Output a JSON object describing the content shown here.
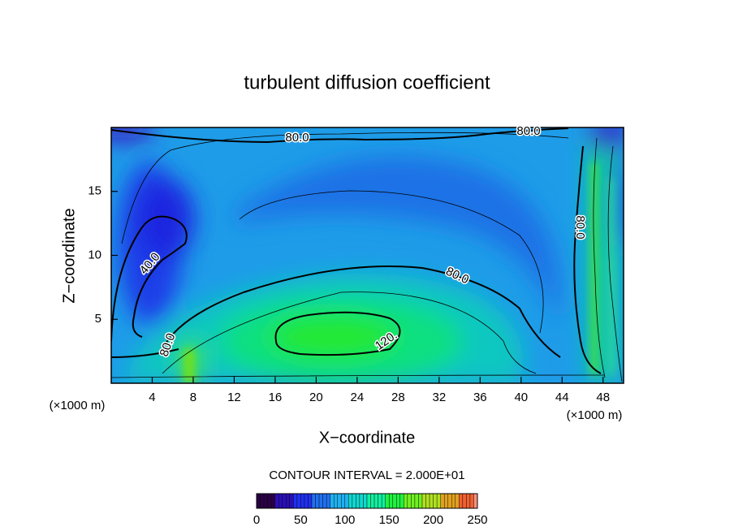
{
  "chart_data": {
    "type": "contour",
    "title": "turbulent diffusion coefficient",
    "xlabel": "X−coordinate",
    "ylabel": "Z−coordinate",
    "x_unit_labels": [
      "(×1000 m)",
      "(×1000 m)"
    ],
    "xlim": [
      0,
      50
    ],
    "xticks": [
      4,
      8,
      12,
      16,
      20,
      24,
      28,
      32,
      36,
      40,
      44,
      48
    ],
    "ylim": [
      0,
      20
    ],
    "yticks": [
      5,
      10,
      15
    ],
    "contour_labels": [
      {
        "value": 80,
        "label": "80.0"
      },
      {
        "value": 80,
        "label": "80.0"
      },
      {
        "value": 80,
        "label": "80.0"
      },
      {
        "value": 40,
        "label": "40.0"
      },
      {
        "value": 80,
        "label": "80.0"
      },
      {
        "value": 120,
        "label": "120."
      },
      {
        "value": 80,
        "label": "80.0"
      }
    ],
    "contour_interval_text": "CONTOUR INTERVAL = 2.000E+01",
    "colorbar": {
      "lim": [
        0,
        250
      ],
      "ticks": [
        0,
        50,
        100,
        150,
        200,
        250
      ],
      "colors": [
        "#2a0046",
        "#2a10b4",
        "#2030f0",
        "#2070f0",
        "#20b0f0",
        "#10d8d0",
        "#10f0a0",
        "#20f040",
        "#70f020",
        "#b0e020",
        "#e0a020",
        "#f06030",
        "#ff9080"
      ]
    }
  }
}
